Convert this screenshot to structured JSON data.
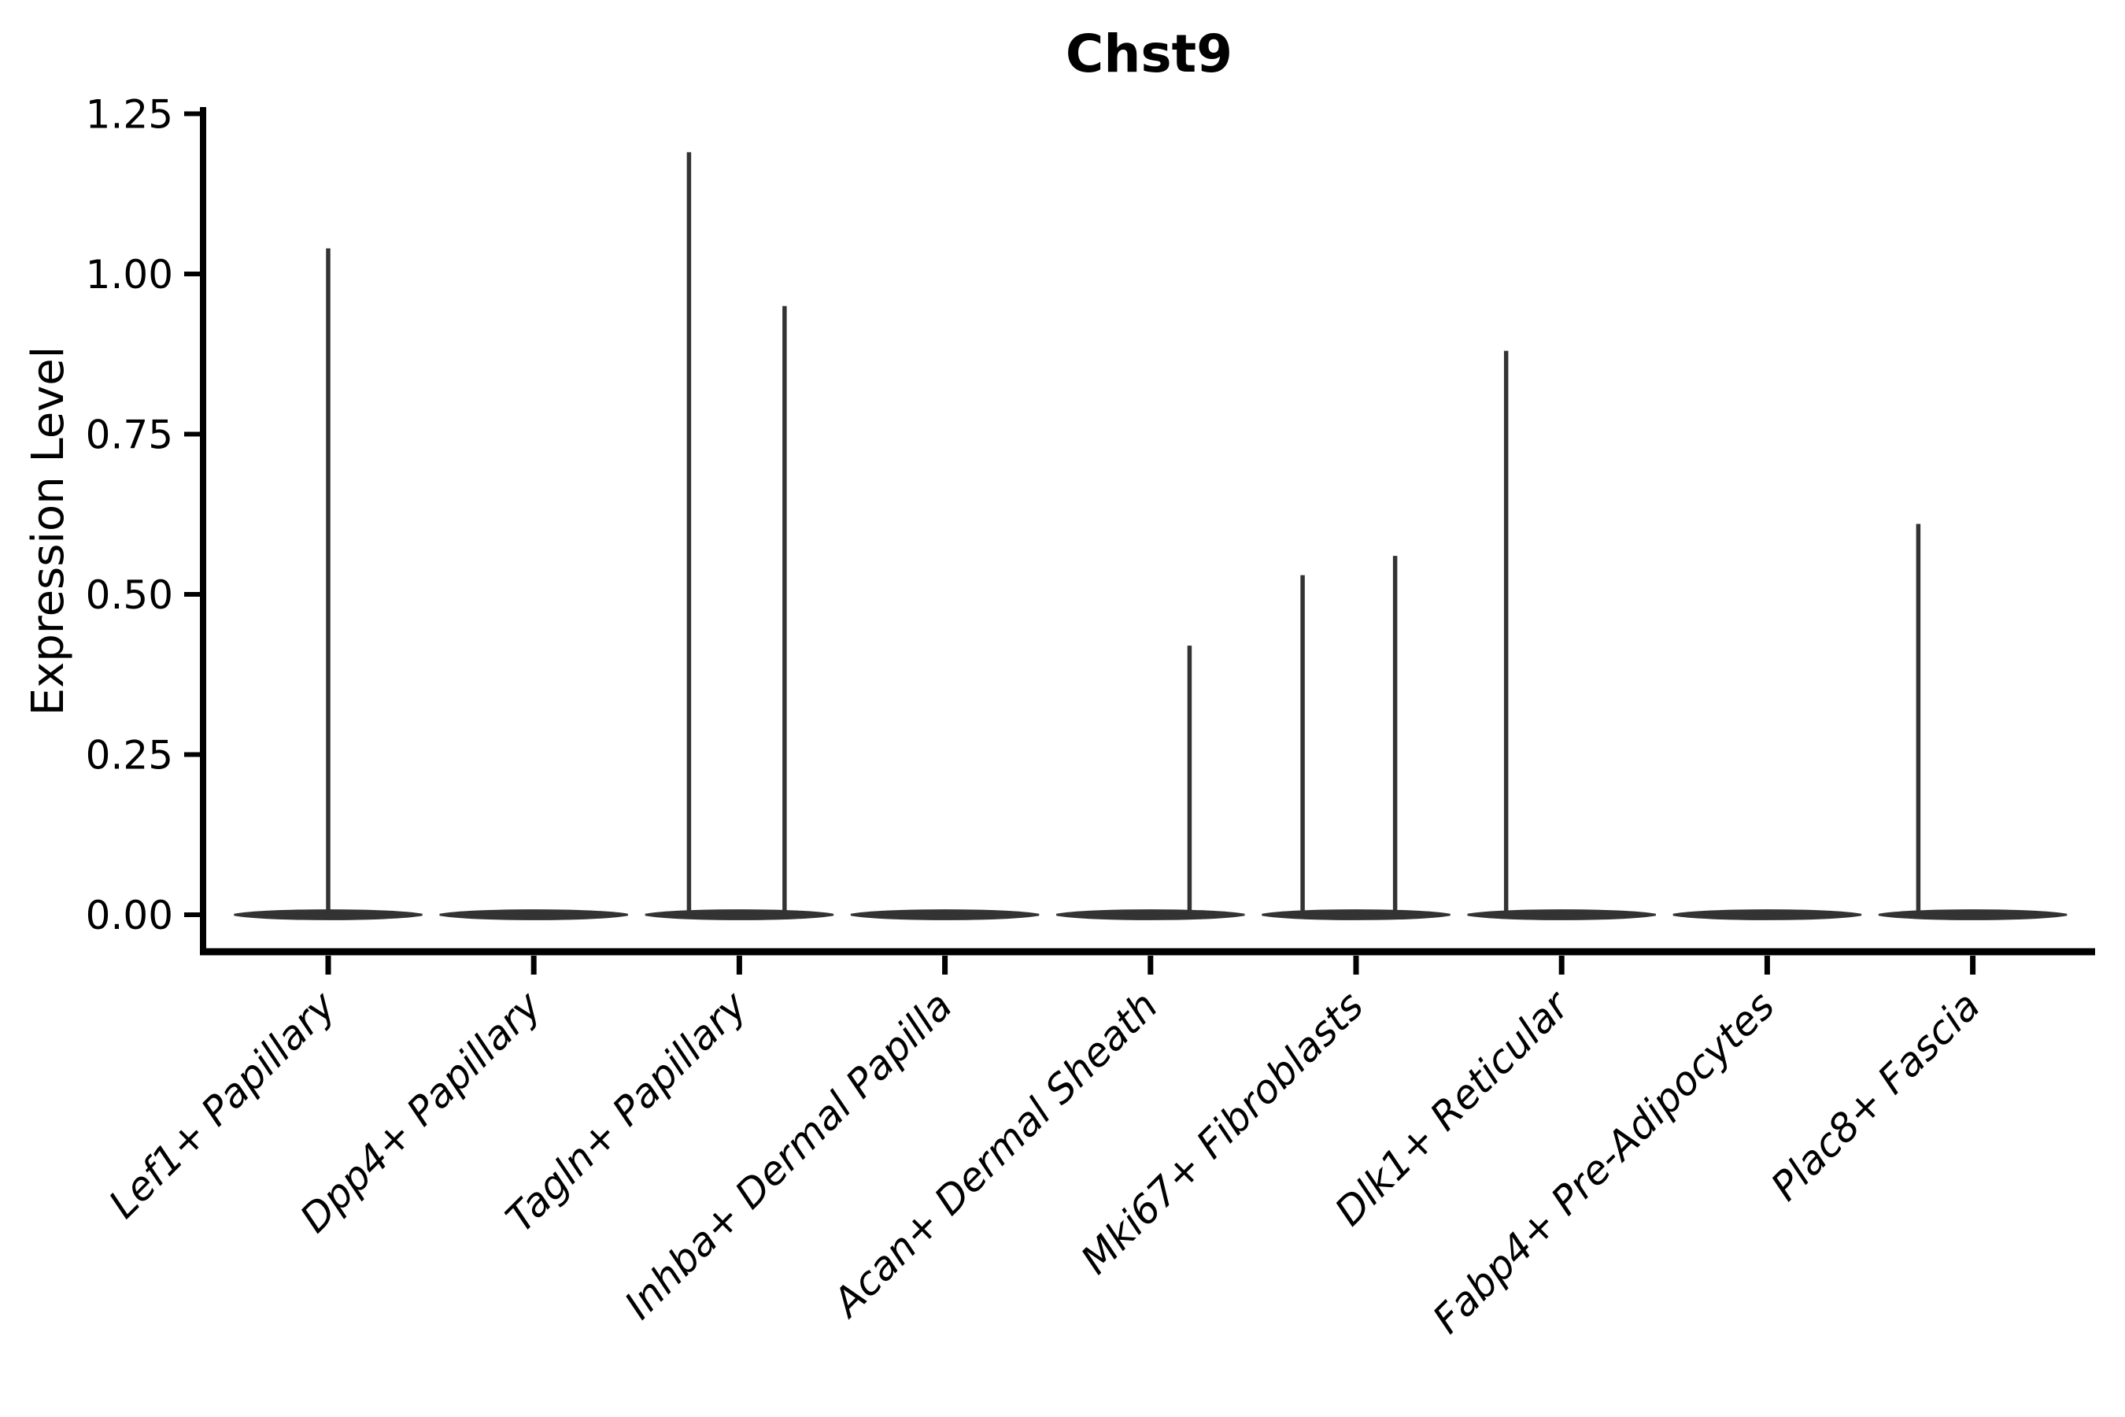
{
  "chart_data": {
    "type": "violin",
    "title": "Chst9",
    "xlabel": "",
    "ylabel": "Expression Level",
    "ylim": [
      -0.06,
      1.26
    ],
    "yticks": [
      "0.00",
      "0.25",
      "0.50",
      "0.75",
      "1.00",
      "1.25"
    ],
    "ytick_values": [
      0.0,
      0.25,
      0.5,
      0.75,
      1.0,
      1.25
    ],
    "grid": false,
    "legend": null,
    "line_color": "#333333",
    "axis_color": "#000000",
    "background_color": "#ffffff",
    "categories": [
      "Lef1+ Papillary",
      "Dpp4+ Papillary",
      "Tagln+ Papillary",
      "Inhba+ Dermal Papilla",
      "Acan+ Dermal Sheath",
      "Mki67+ Fibroblasts",
      "Dlk1+ Reticular",
      "Fabp4+ Pre-Adipocytes",
      "Plac8+ Fascia"
    ],
    "violins": [
      {
        "category": "Lef1+ Papillary",
        "baseline": 0.0,
        "spikes": [
          {
            "offset": 0.0,
            "max": 1.04
          }
        ]
      },
      {
        "category": "Dpp4+ Papillary",
        "baseline": 0.0,
        "spikes": []
      },
      {
        "category": "Tagln+ Papillary",
        "baseline": 0.0,
        "spikes": [
          {
            "offset": -0.245,
            "max": 1.19
          },
          {
            "offset": 0.22,
            "max": 0.95
          }
        ]
      },
      {
        "category": "Inhba+ Dermal Papilla",
        "baseline": 0.0,
        "spikes": []
      },
      {
        "category": "Acan+ Dermal Sheath",
        "baseline": 0.0,
        "spikes": [
          {
            "offset": 0.19,
            "max": 0.42
          }
        ]
      },
      {
        "category": "Mki67+ Fibroblasts",
        "baseline": 0.0,
        "spikes": [
          {
            "offset": -0.26,
            "max": 0.53
          },
          {
            "offset": 0.19,
            "max": 0.56
          }
        ]
      },
      {
        "category": "Dlk1+ Reticular",
        "baseline": 0.0,
        "spikes": [
          {
            "offset": -0.27,
            "max": 0.88
          }
        ]
      },
      {
        "category": "Fabp4+ Pre-Adipocytes",
        "baseline": 0.0,
        "spikes": []
      },
      {
        "category": "Plac8+ Fascia",
        "baseline": 0.0,
        "spikes": [
          {
            "offset": -0.265,
            "max": 0.61
          }
        ]
      }
    ]
  }
}
